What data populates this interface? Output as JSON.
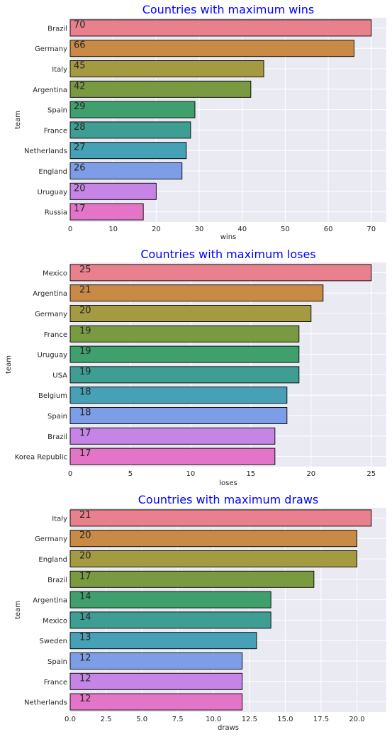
{
  "chart_data": [
    {
      "type": "bar",
      "orientation": "horizontal",
      "title": "Countries with maximum wins",
      "xlabel": "wins",
      "ylabel": "team",
      "categories": [
        "Brazil",
        "Germany",
        "Italy",
        "Argentina",
        "Spain",
        "France",
        "Netherlands",
        "England",
        "Uruguay",
        "Russia"
      ],
      "values": [
        70,
        66,
        45,
        42,
        29,
        28,
        27,
        26,
        20,
        17
      ],
      "xlim": [
        0,
        73.5
      ],
      "xticks": [
        0,
        10,
        20,
        30,
        40,
        50,
        60,
        70
      ],
      "grid": true
    },
    {
      "type": "bar",
      "orientation": "horizontal",
      "title": "Countries with maximum loses",
      "xlabel": "loses",
      "ylabel": "team",
      "categories": [
        "Mexico",
        "Argentina",
        "Germany",
        "France",
        "Uruguay",
        "USA",
        "Belgium",
        "Spain",
        "Brazil",
        "Korea Republic"
      ],
      "values": [
        25,
        21,
        20,
        19,
        19,
        19,
        18,
        18,
        17,
        17
      ],
      "xlim": [
        0,
        26.25
      ],
      "xticks": [
        0,
        5,
        10,
        15,
        20,
        25
      ],
      "grid": true
    },
    {
      "type": "bar",
      "orientation": "horizontal",
      "title": "Countries with maximum draws",
      "xlabel": "draws",
      "ylabel": "team",
      "categories": [
        "Italy",
        "Germany",
        "England",
        "Brazil",
        "Argentina",
        "Mexico",
        "Sweden",
        "Spain",
        "France",
        "Netherlands"
      ],
      "values": [
        21,
        20,
        20,
        17,
        14,
        14,
        13,
        12,
        12,
        12
      ],
      "xlim": [
        0,
        22.05
      ],
      "xticks": [
        "0.0",
        "2.5",
        "5.0",
        "7.5",
        "10.0",
        "12.5",
        "15.0",
        "17.5",
        "20.0"
      ],
      "grid": true
    }
  ],
  "style": {
    "palette": [
      "#e8808d",
      "#c98a45",
      "#a39a42",
      "#7a9a42",
      "#3fa06e",
      "#3f9e93",
      "#46a0b6",
      "#7d9ee6",
      "#c684e6",
      "#e474c8"
    ],
    "plot_background": "#eaeaf2",
    "grid_color": "#ffffff",
    "title_color": "#0000ff",
    "text_color": "#262626",
    "bar_edge": "#000000"
  }
}
